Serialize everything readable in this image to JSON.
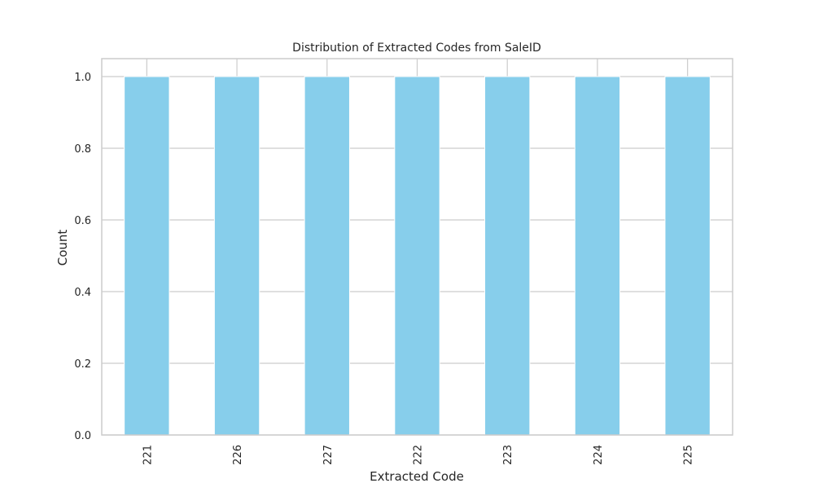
{
  "chart_data": {
    "type": "bar",
    "title": "Distribution of Extracted Codes from SaleID",
    "xlabel": "Extracted Code",
    "ylabel": "Count",
    "categories": [
      "221",
      "226",
      "227",
      "222",
      "223",
      "224",
      "225"
    ],
    "values": [
      1,
      1,
      1,
      1,
      1,
      1,
      1
    ],
    "ylim": [
      0,
      1.05
    ],
    "yticks": [
      "0.0",
      "0.2",
      "0.4",
      "0.6",
      "0.8",
      "1.0"
    ],
    "grid": true,
    "bar_color": "#87CEEB",
    "grid_color": "#cccccc",
    "spine_color": "#cccccc",
    "x_tick_rotation": "vertical",
    "legend": "none"
  }
}
